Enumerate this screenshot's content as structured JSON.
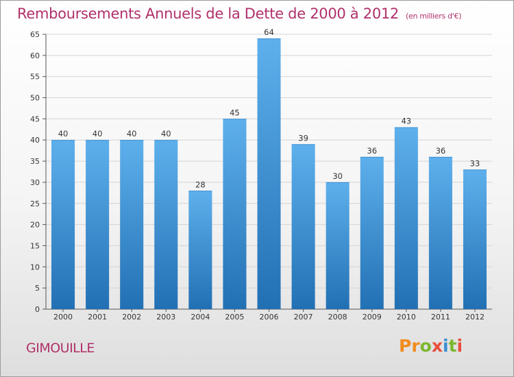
{
  "chart_data": {
    "type": "bar",
    "title": "Remboursements Annuels de la Dette de 2000 à 2012",
    "subtitle": "(en milliers d'€)",
    "categories": [
      "2000",
      "2001",
      "2002",
      "2003",
      "2004",
      "2005",
      "2006",
      "2007",
      "2008",
      "2009",
      "2010",
      "2011",
      "2012"
    ],
    "values": [
      40,
      40,
      40,
      40,
      28,
      45,
      64,
      39,
      30,
      36,
      43,
      36,
      33
    ],
    "ylim": [
      0,
      65
    ],
    "yticks": [
      0,
      5,
      10,
      15,
      20,
      25,
      30,
      35,
      40,
      45,
      50,
      55,
      60,
      65
    ],
    "grid": true,
    "xlabel": "",
    "ylabel": ""
  },
  "footer": {
    "city": "GIMOUILLE",
    "logo_letters": [
      "P",
      "r",
      "o",
      "x",
      "i",
      "t",
      "i"
    ]
  },
  "colors": {
    "title": "#b0306a",
    "bar_top": "#5eb0ec",
    "bar_bottom": "#2270b4",
    "grid": "#d4d4d4",
    "logo": [
      "#f28c1e",
      "#f28c1e",
      "#7bb72f",
      "#e94e3c",
      "#3a8fd0",
      "#7bb72f",
      "#e94e3c"
    ]
  }
}
